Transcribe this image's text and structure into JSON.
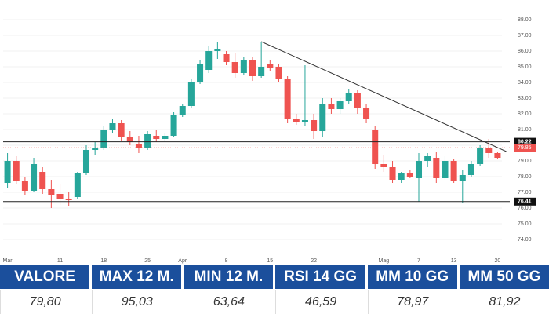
{
  "chart_data": {
    "type": "candlestick",
    "categories": [
      "Mar",
      null,
      null,
      null,
      null,
      null,
      "11",
      null,
      null,
      null,
      null,
      "18",
      null,
      null,
      null,
      null,
      "25",
      null,
      null,
      null,
      "Apr",
      null,
      null,
      null,
      null,
      "8",
      null,
      null,
      null,
      null,
      "15",
      null,
      null,
      null,
      null,
      "22",
      null,
      null,
      null,
      null,
      null,
      null,
      null,
      "Mag",
      null,
      null,
      null,
      "7",
      null,
      null,
      null,
      "13",
      null,
      null,
      null,
      null,
      "20"
    ],
    "open": [
      77.6,
      79.0,
      77.7,
      77.1,
      78.3,
      77.2,
      76.9,
      76.6,
      76.7,
      78.2,
      79.7,
      79.8,
      81.0,
      81.4,
      80.5,
      80.1,
      79.8,
      80.6,
      80.4,
      80.6,
      81.9,
      82.5,
      84.0,
      84.8,
      86.0,
      85.8,
      85.3,
      84.6,
      85.4,
      84.4,
      85.2,
      85.0,
      84.2,
      81.7,
      81.5,
      81.6,
      80.9,
      82.6,
      82.3,
      82.8,
      83.3,
      82.4,
      81.0,
      78.8,
      78.6,
      77.8,
      78.2,
      77.9,
      79.0,
      79.2,
      77.9,
      79.0,
      77.7,
      78.1,
      78.8,
      79.8,
      79.5
    ],
    "high": [
      79.5,
      79.3,
      78.0,
      79.2,
      78.6,
      77.8,
      77.5,
      77.0,
      78.3,
      80.0,
      80.2,
      81.2,
      81.7,
      81.6,
      80.9,
      80.6,
      80.9,
      81.0,
      80.8,
      82.1,
      82.6,
      84.2,
      85.4,
      86.3,
      86.6,
      86.0,
      85.9,
      85.6,
      85.6,
      86.6,
      85.4,
      85.2,
      84.4,
      82.0,
      85.1,
      82.0,
      83.0,
      83.0,
      83.0,
      83.6,
      83.5,
      82.6,
      81.2,
      79.4,
      79.0,
      78.3,
      78.4,
      79.5,
      79.5,
      79.6,
      79.3,
      79.1,
      78.4,
      79.0,
      80.0,
      80.4,
      79.6
    ],
    "low": [
      77.3,
      77.5,
      76.8,
      77.0,
      76.9,
      76.0,
      76.2,
      76.1,
      76.6,
      78.1,
      79.4,
      79.7,
      80.8,
      80.3,
      80.0,
      79.5,
      79.7,
      80.2,
      80.3,
      80.5,
      81.8,
      82.4,
      83.9,
      84.6,
      85.5,
      85.1,
      84.3,
      84.5,
      84.1,
      84.3,
      84.7,
      84.0,
      81.4,
      81.3,
      81.2,
      80.4,
      80.5,
      82.0,
      82.0,
      82.6,
      82.0,
      81.4,
      78.5,
      78.3,
      77.6,
      77.6,
      77.9,
      76.4,
      78.6,
      77.6,
      77.8,
      77.6,
      76.3,
      78.0,
      78.7,
      79.2,
      79.1
    ],
    "close": [
      79.0,
      77.7,
      77.1,
      78.8,
      77.2,
      76.8,
      76.6,
      76.5,
      78.2,
      79.7,
      79.8,
      81.0,
      81.4,
      80.5,
      80.2,
      79.8,
      80.7,
      80.4,
      80.6,
      81.9,
      82.5,
      84.0,
      85.2,
      86.0,
      86.1,
      85.3,
      84.6,
      85.4,
      84.4,
      85.0,
      84.9,
      84.2,
      81.7,
      81.5,
      81.6,
      80.9,
      82.6,
      82.3,
      82.8,
      83.3,
      82.4,
      81.7,
      78.8,
      78.6,
      77.8,
      78.2,
      78.0,
      79.0,
      79.3,
      77.9,
      79.0,
      77.7,
      78.1,
      78.8,
      79.8,
      79.5,
      79.2
    ],
    "up_color": "#26a69a",
    "down_color": "#ef5350",
    "ylim": [
      73,
      88.5
    ],
    "yticks": [
      {
        "value": 74,
        "label": "74.00"
      },
      {
        "value": 75,
        "label": "75.00"
      },
      {
        "value": 76,
        "label": "76.00"
      },
      {
        "value": 77,
        "label": "77.00"
      },
      {
        "value": 78,
        "label": "78.00"
      },
      {
        "value": 79,
        "label": "79.00"
      },
      {
        "value": 80,
        "label": "80.00"
      },
      {
        "value": 81,
        "label": "81.00"
      },
      {
        "value": 82,
        "label": "82.00"
      },
      {
        "value": 83,
        "label": "83.00"
      },
      {
        "value": 84,
        "label": "84.00"
      },
      {
        "value": 85,
        "label": "85.00"
      },
      {
        "value": 86,
        "label": "86.00"
      },
      {
        "value": 87,
        "label": "87.00"
      },
      {
        "value": 88,
        "label": "88.00"
      }
    ],
    "levels": [
      80.22,
      76.41
    ],
    "last_price": 79.85,
    "trendline": [
      86.6,
      79.6
    ]
  },
  "table": {
    "headers": [
      "VALORE",
      "MAX 12 M.",
      "MIN 12 M.",
      "RSI 14 GG",
      "MM 10 GG",
      "MM 50 GG"
    ],
    "rows": [
      [
        "79,80",
        "95,03",
        "63,64",
        "46,59",
        "78,97",
        "81,92"
      ]
    ]
  }
}
